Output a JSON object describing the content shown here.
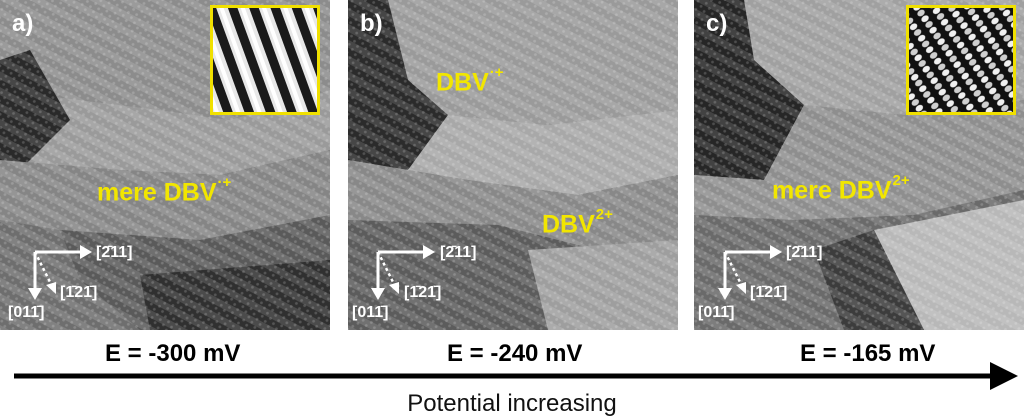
{
  "panels": [
    {
      "label": "a)",
      "features": [
        {
          "text": "mere DBV",
          "sup": "·+"
        }
      ],
      "axes": {
        "right": "[2̄11]",
        "diag": "[1̄21̄]",
        "down": "[011̄]"
      },
      "energy": "E = -300 mV",
      "has_inset": true
    },
    {
      "label": "b)",
      "features": [
        {
          "text": "DBV",
          "sup": "·+"
        },
        {
          "text": "DBV",
          "sup": "2+"
        }
      ],
      "axes": {
        "right": "[2̄11]",
        "diag": "[1̄21̄]",
        "down": "[011̄]"
      },
      "energy": "E = -240 mV",
      "has_inset": false
    },
    {
      "label": "c)",
      "features": [
        {
          "text": "mere DBV",
          "sup": "2+"
        }
      ],
      "axes": {
        "right": "[2̄11]",
        "diag": "[1̄21̄]",
        "down": "[011̄]"
      },
      "energy": "E = -165 mV",
      "has_inset": true
    }
  ],
  "caption": "Potential increasing",
  "colors": {
    "label_yellow": "#f2e600",
    "inset_border": "#f0e000",
    "arrow": "#000000"
  }
}
